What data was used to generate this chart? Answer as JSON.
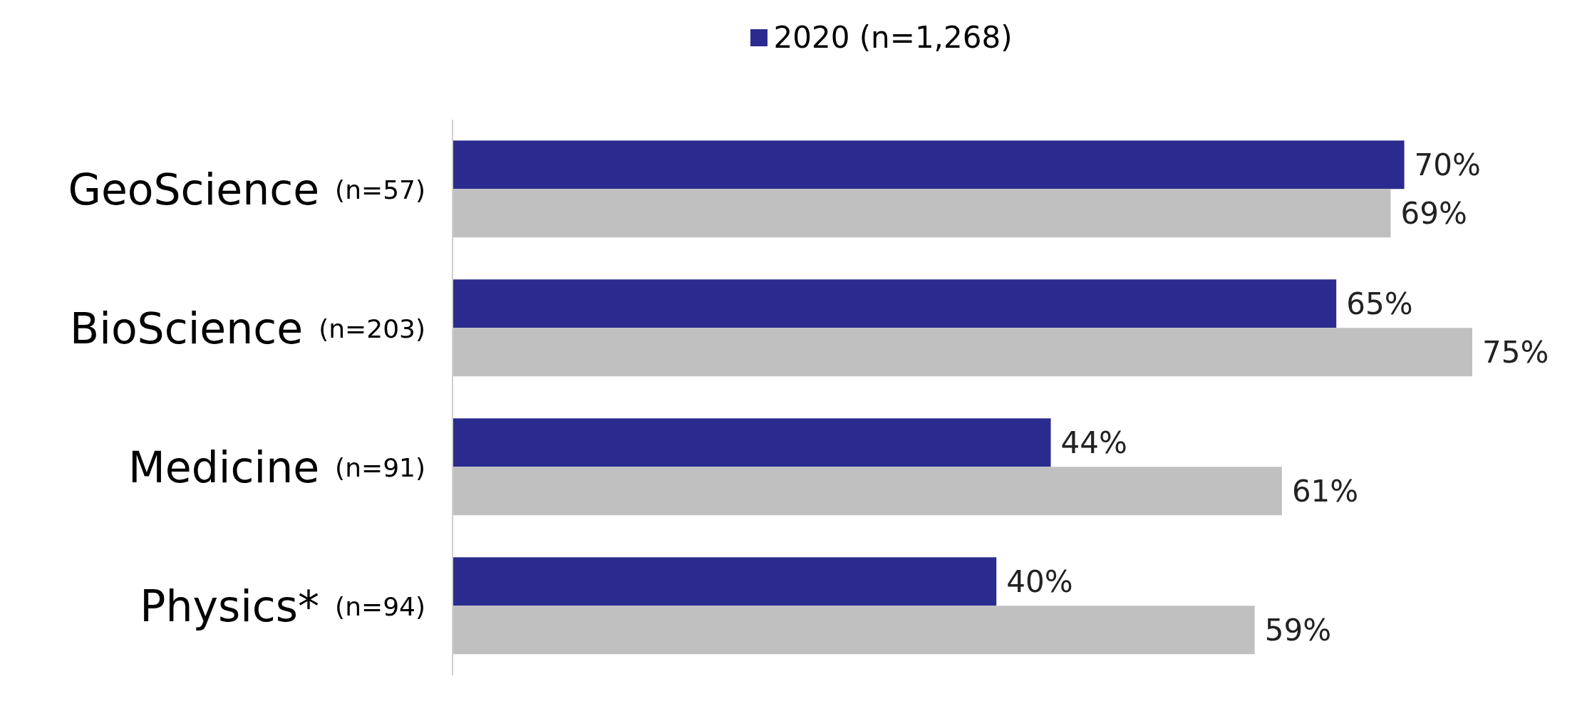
{
  "chart_data": {
    "type": "bar",
    "orientation": "horizontal",
    "categories": [
      "GeoScience (n=57)",
      "BioScience (n=203)",
      "Medicine (n=91)",
      "Physics* (n=94)"
    ],
    "series": [
      {
        "name": "2020 (n=1,268)",
        "color": "#2b2b8f",
        "values": [
          70,
          65,
          44,
          40
        ],
        "value_labels": [
          "70%",
          "65%",
          "44%",
          "40%"
        ]
      },
      {
        "color": "#c0c0c0",
        "values": [
          69,
          75,
          61,
          59
        ],
        "value_labels": [
          "69%",
          "75%",
          "61%",
          "59%"
        ]
      }
    ],
    "legend": "top"
  }
}
